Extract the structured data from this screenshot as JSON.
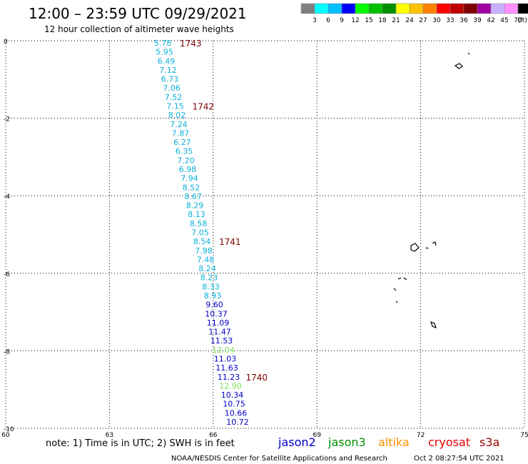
{
  "header": {
    "title": "12:00 – 23:59 UTC 09/29/2021",
    "subtitle": "12 hour collection of altimeter wave heights"
  },
  "legend_scale": {
    "colors": [
      "#808080",
      "#00ffff",
      "#00bfff",
      "#0000ff",
      "#00ff00",
      "#00c000",
      "#009000",
      "#ffff00",
      "#ffc000",
      "#ff8000",
      "#ff0000",
      "#c00000",
      "#800000",
      "#a000a0",
      "#c8b0ff",
      "#ff90ff",
      "#000000"
    ],
    "labels": [
      "3",
      "6",
      "9",
      "12",
      "15",
      "18",
      "21",
      "24",
      "27",
      "30",
      "33",
      "36",
      "39",
      "42",
      "45",
      "70"
    ],
    "unit": "(ft)"
  },
  "map": {
    "x_ticks": [
      "60",
      "63",
      "66",
      "69",
      "72",
      "75"
    ],
    "y_ticks": [
      "0",
      "-2",
      "-4",
      "-6",
      "-8",
      "-10"
    ],
    "lon_range": [
      60,
      75
    ],
    "lat_range": [
      -10,
      0
    ]
  },
  "track": {
    "readings": [
      {
        "v": "5.78",
        "c": "#0bb0d8"
      },
      {
        "v": "5.95",
        "c": "#0bb0d8"
      },
      {
        "v": "6.49",
        "c": "#0bb0d8"
      },
      {
        "v": "7.12",
        "c": "#0bb0d8"
      },
      {
        "v": "6.73",
        "c": "#0bb0d8"
      },
      {
        "v": "7.06",
        "c": "#0bb0d8"
      },
      {
        "v": "7.52",
        "c": "#0bb0d8"
      },
      {
        "v": "7.15",
        "c": "#0bb0d8"
      },
      {
        "v": "8.02",
        "c": "#0bb0d8"
      },
      {
        "v": "7.24",
        "c": "#0bb0d8"
      },
      {
        "v": "7.87",
        "c": "#0bb0d8"
      },
      {
        "v": "6.27",
        "c": "#0bb0d8"
      },
      {
        "v": "6.35",
        "c": "#0bb0d8"
      },
      {
        "v": "7.20",
        "c": "#0bb0d8"
      },
      {
        "v": "6.98",
        "c": "#0bb0d8"
      },
      {
        "v": "7.94",
        "c": "#0bb0d8"
      },
      {
        "v": "8.52",
        "c": "#0bb0d8"
      },
      {
        "v": "8.67",
        "c": "#0bb0d8"
      },
      {
        "v": "8.29",
        "c": "#0bb0d8"
      },
      {
        "v": "8.13",
        "c": "#0bb0d8"
      },
      {
        "v": "8.58",
        "c": "#0bb0d8"
      },
      {
        "v": "7.05",
        "c": "#0bb0d8"
      },
      {
        "v": "8.54",
        "c": "#0bb0d8"
      },
      {
        "v": "7.98",
        "c": "#0bb0d8"
      },
      {
        "v": "7.48",
        "c": "#0bb0d8"
      },
      {
        "v": "8.24",
        "c": "#0bb0d8"
      },
      {
        "v": "8.23",
        "c": "#0bb0d8"
      },
      {
        "v": "8.33",
        "c": "#0bb0d8"
      },
      {
        "v": "8.93",
        "c": "#0bb0d8"
      },
      {
        "v": "9.60",
        "c": "#0000c8"
      },
      {
        "v": "10.37",
        "c": "#0000c8"
      },
      {
        "v": "11.09",
        "c": "#0000c8"
      },
      {
        "v": "11.47",
        "c": "#0000c8"
      },
      {
        "v": "11.53",
        "c": "#0000c8"
      },
      {
        "v": "12.04",
        "c": "#80e060"
      },
      {
        "v": "11.03",
        "c": "#0000c8"
      },
      {
        "v": "11.63",
        "c": "#0000c8"
      },
      {
        "v": "11.23",
        "c": "#0000c8"
      },
      {
        "v": "12.90",
        "c": "#80e060"
      },
      {
        "v": "10.34",
        "c": "#0000c8"
      },
      {
        "v": "10.75",
        "c": "#0000c8"
      },
      {
        "v": "10.66",
        "c": "#0000c8"
      },
      {
        "v": "10.72",
        "c": "#0000c8"
      }
    ],
    "time_marks": [
      {
        "label": "1743",
        "after_index": 0
      },
      {
        "label": "1742",
        "after_index": 7
      },
      {
        "label": "1741",
        "after_index": 22
      },
      {
        "label": "1740",
        "after_index": 37
      }
    ]
  },
  "footer": {
    "note": "note:  1) Time is in UTC;  2) SWH is in feet",
    "sats": [
      {
        "name": "jason2",
        "color": "#0000c8"
      },
      {
        "name": "jason3",
        "color": "#009000"
      },
      {
        "name": "altika",
        "color": "#ff9000"
      },
      {
        "name": "cryosat",
        "color": "#e00000"
      },
      {
        "name": "s3a",
        "color": "#a00000"
      }
    ],
    "credit": "NOAA/NESDIS Center for Satellite Applications and Research",
    "timestamp": "Oct  2 08:27:54 UTC 2021"
  }
}
